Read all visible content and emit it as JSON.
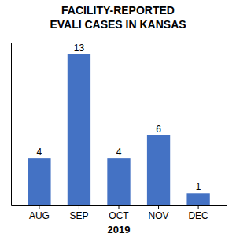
{
  "chart_data": {
    "type": "bar",
    "title": "FACILITY-REPORTED\nEVALI CASES IN KANSAS",
    "xlabel": "2019",
    "categories": [
      "AUG",
      "SEP",
      "OCT",
      "NOV",
      "DEC"
    ],
    "values": [
      4,
      13,
      4,
      6,
      1
    ],
    "color": "#4472c4",
    "ylim": [
      0,
      14
    ],
    "data_labels": true,
    "tick_labels": "x",
    "grid": false
  }
}
